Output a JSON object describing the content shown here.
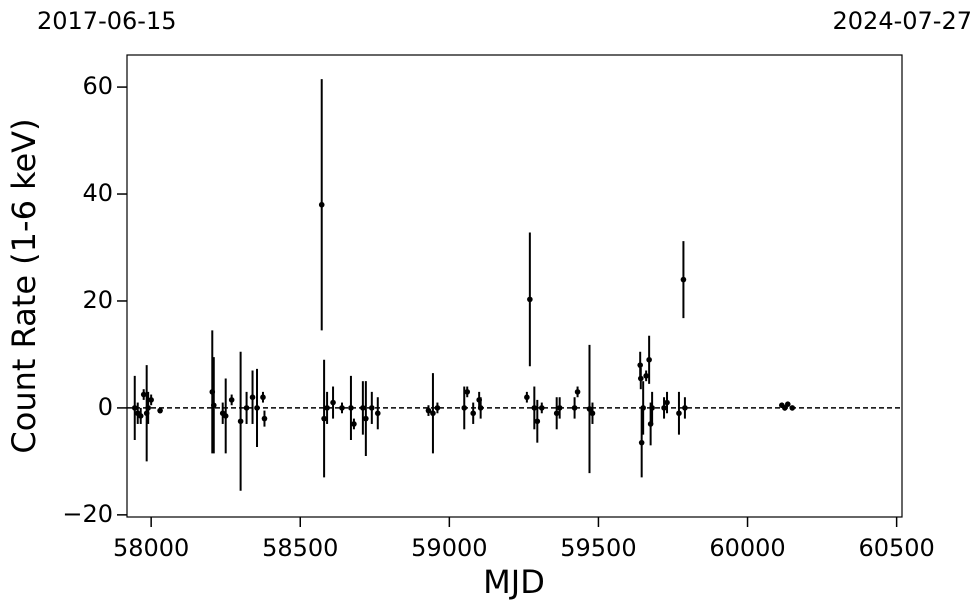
{
  "chart_data": {
    "type": "scatter",
    "xlabel": "MJD",
    "ylabel": "Count Rate (1-6 keV)",
    "color": "#000000",
    "hline": 0,
    "xlim": [
      57919,
      60518
    ],
    "ylim": [
      -20.4,
      66
    ],
    "xticks": [
      58000,
      58500,
      59000,
      59500,
      60000,
      60500
    ],
    "yticks": [
      {
        "value": -20,
        "label": "−20"
      },
      0,
      20,
      40,
      60
    ],
    "x2ticks": [
      {
        "value": 57919,
        "label": "2017-06-15"
      },
      {
        "value": 60518,
        "label": "2024-07-27"
      }
    ],
    "x": [
      57945,
      57955,
      57965,
      57975,
      57985,
      57990,
      58000,
      58030,
      58205,
      58210,
      58240,
      58250,
      58270,
      58300,
      58320,
      58340,
      58355,
      58375,
      58380,
      58572,
      58580,
      58590,
      58610,
      58640,
      58670,
      58680,
      58710,
      58720,
      58740,
      58760,
      58930,
      58945,
      58960,
      59050,
      59060,
      59080,
      59100,
      59105,
      59260,
      59270,
      59285,
      59295,
      59310,
      59360,
      59370,
      59420,
      59430,
      59470,
      59480,
      59640,
      59642,
      59645,
      59650,
      59660,
      59670,
      59675,
      59680,
      59720,
      59730,
      59770,
      59785,
      59790,
      60115,
      60125,
      60135,
      60150
    ],
    "values": [
      0,
      -1,
      -1.5,
      2.5,
      -1,
      0,
      1.5,
      -0.5,
      3,
      0.5,
      -1,
      -1.5,
      1.5,
      -2.5,
      0,
      2,
      0,
      2,
      -2,
      38,
      -2,
      0,
      1,
      0,
      0,
      -3,
      0,
      -2,
      0,
      -1,
      -0.5,
      -1,
      0,
      0,
      3,
      -1,
      1.5,
      0,
      2,
      20.3,
      0,
      -2.5,
      0,
      -1,
      0,
      0,
      3,
      -0.2,
      -1,
      8,
      5.5,
      -6.5,
      0,
      6,
      9,
      -3,
      0,
      0,
      1,
      -1,
      24,
      0,
      0.5,
      0,
      0.7,
      0
    ],
    "errors": [
      6,
      2,
      1.5,
      1,
      9,
      3,
      1,
      0.5,
      11.5,
      9,
      2,
      7,
      1,
      13,
      3,
      5,
      7.3,
      1,
      1.5,
      23.5,
      11,
      3,
      3,
      1,
      6,
      1,
      5,
      7,
      3,
      3,
      1,
      7.5,
      1,
      4,
      1,
      2,
      1.5,
      2,
      1,
      12.5,
      4,
      4,
      1,
      3,
      2,
      2,
      1,
      12,
      2,
      2.5,
      2,
      6.5,
      5,
      1,
      4.5,
      4,
      3,
      2,
      2,
      4,
      7.2,
      2,
      0.5,
      0.5,
      0.3,
      0.3
    ]
  }
}
